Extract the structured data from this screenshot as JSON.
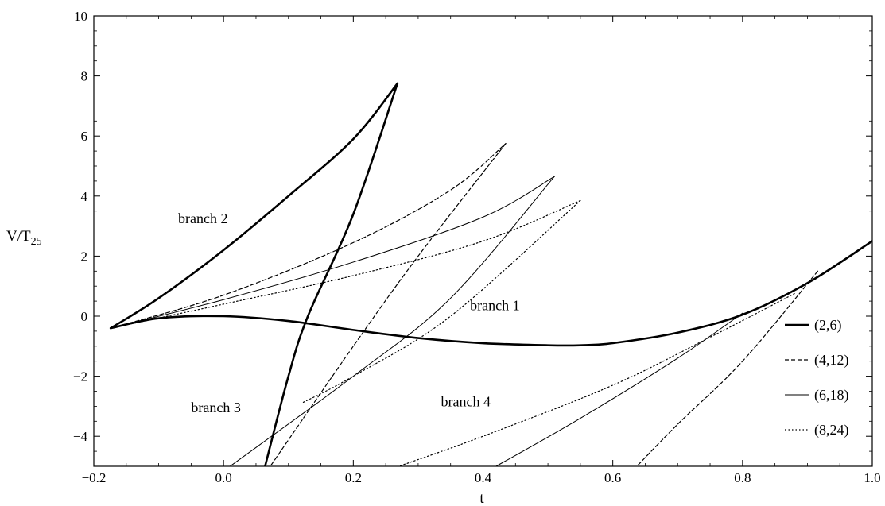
{
  "chart_data": {
    "type": "line",
    "title": "",
    "xlabel": "t",
    "ylabel": "V/T",
    "ylabel_sub": "25",
    "xlim": [
      -0.2,
      1.0
    ],
    "ylim": [
      -5,
      10
    ],
    "xticks": [
      -0.2,
      0.0,
      0.2,
      0.4,
      0.6,
      0.8,
      1.0
    ],
    "xtick_labels": [
      "−0.2",
      "0.0",
      "0.2",
      "0.4",
      "0.6",
      "0.8",
      "1.0"
    ],
    "yticks": [
      -4,
      -2,
      0,
      2,
      4,
      6,
      8,
      10
    ],
    "ytick_labels": [
      "−4",
      "−2",
      "0",
      "2",
      "4",
      "6",
      "8",
      "10"
    ],
    "grid": false,
    "legend_position": "right",
    "annotations": [
      {
        "text": "branch 1",
        "x": 0.38,
        "y": 0.2
      },
      {
        "text": "branch 2",
        "x": -0.07,
        "y": 3.1
      },
      {
        "text": "branch 3",
        "x": -0.05,
        "y": -3.2
      },
      {
        "text": "branch 4",
        "x": 0.335,
        "y": -3.0
      }
    ],
    "series": [
      {
        "name": "(2,6)",
        "style": "thick-solid",
        "branch1": [
          [
            -0.174,
            -0.4
          ],
          [
            -0.1,
            -0.07
          ],
          [
            0.0,
            0.0
          ],
          [
            0.1,
            -0.16
          ],
          [
            0.2,
            -0.46
          ],
          [
            0.3,
            -0.73
          ],
          [
            0.4,
            -0.9
          ],
          [
            0.5,
            -0.97
          ],
          [
            0.55,
            -0.97
          ],
          [
            0.6,
            -0.9
          ],
          [
            0.7,
            -0.55
          ],
          [
            0.8,
            0.05
          ],
          [
            0.9,
            1.1
          ],
          [
            1.0,
            2.5
          ]
        ],
        "branch2": [
          [
            -0.174,
            -0.4
          ],
          [
            -0.1,
            0.6
          ],
          [
            0.0,
            2.2
          ],
          [
            0.1,
            4.0
          ],
          [
            0.2,
            5.9
          ],
          [
            0.268,
            7.75
          ]
        ],
        "branch3": [
          [
            0.268,
            7.75
          ],
          [
            0.2,
            3.4
          ],
          [
            0.13,
            0.0
          ],
          [
            0.1,
            -2.0
          ],
          [
            0.064,
            -5.0
          ]
        ]
      },
      {
        "name": "(4,12)",
        "style": "dashed",
        "branch2": [
          [
            -0.174,
            -0.4
          ],
          [
            0.0,
            0.7
          ],
          [
            0.2,
            2.45
          ],
          [
            0.35,
            4.2
          ],
          [
            0.435,
            5.75
          ]
        ],
        "branch3": [
          [
            0.435,
            5.75
          ],
          [
            0.3,
            2.0
          ],
          [
            0.2,
            -1.0
          ],
          [
            0.072,
            -5.0
          ]
        ],
        "branch4": [
          [
            0.916,
            1.5
          ],
          [
            0.8,
            -1.5
          ],
          [
            0.7,
            -3.6
          ],
          [
            0.637,
            -5.0
          ]
        ]
      },
      {
        "name": "(6,18)",
        "style": "thin-solid",
        "branch2": [
          [
            -0.174,
            -0.4
          ],
          [
            0.0,
            0.55
          ],
          [
            0.2,
            1.8
          ],
          [
            0.4,
            3.3
          ],
          [
            0.51,
            4.65
          ]
        ],
        "branch3": [
          [
            0.51,
            4.65
          ],
          [
            0.35,
            0.6
          ],
          [
            0.2,
            -2.0
          ],
          [
            0.01,
            -5.0
          ]
        ],
        "branch4": [
          [
            0.8,
            0.1
          ],
          [
            0.7,
            -1.4
          ],
          [
            0.55,
            -3.4
          ],
          [
            0.42,
            -5.0
          ]
        ]
      },
      {
        "name": "(8,24)",
        "style": "dotted",
        "branch2": [
          [
            -0.174,
            -0.4
          ],
          [
            0.0,
            0.4
          ],
          [
            0.2,
            1.35
          ],
          [
            0.4,
            2.5
          ],
          [
            0.55,
            3.85
          ]
        ],
        "branch3": [
          [
            0.55,
            3.85
          ],
          [
            0.35,
            0.0
          ],
          [
            0.2,
            -2.0
          ],
          [
            0.12,
            -2.9
          ]
        ],
        "branch4": [
          [
            0.88,
            0.75
          ],
          [
            0.75,
            -0.7
          ],
          [
            0.6,
            -2.3
          ],
          [
            0.4,
            -4.0
          ],
          [
            0.27,
            -5.0
          ]
        ]
      }
    ]
  }
}
